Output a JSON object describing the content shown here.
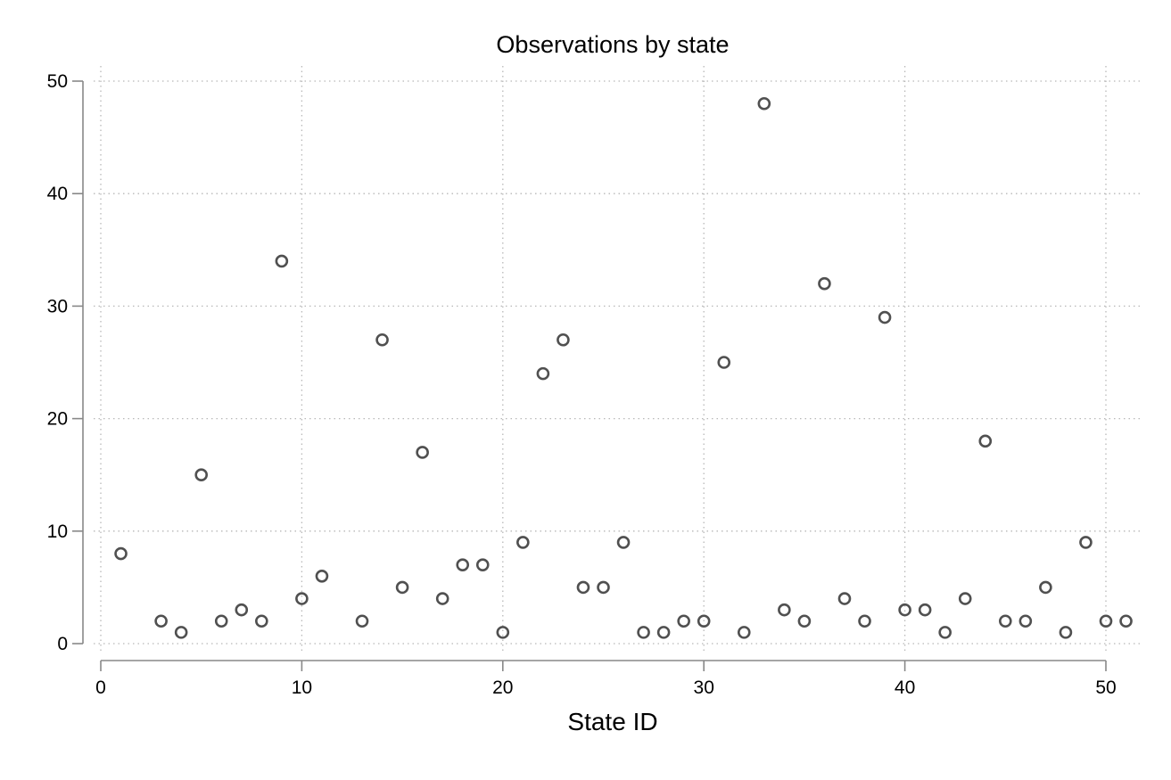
{
  "chart_data": {
    "type": "scatter",
    "title": "Observations by state",
    "xlabel": "State ID",
    "ylabel": "",
    "xlim": [
      0,
      51
    ],
    "ylim": [
      0,
      50
    ],
    "xticks": [
      0,
      10,
      20,
      30,
      40,
      50
    ],
    "yticks": [
      0,
      10,
      20,
      30,
      40,
      50
    ],
    "grid": true,
    "legend": "none",
    "marker": "hollow-circle",
    "marker_color": "#505050",
    "series": [
      {
        "x": [
          1,
          3,
          4,
          5,
          6,
          7,
          8,
          9,
          10,
          11,
          13,
          14,
          15,
          16,
          17,
          18,
          19,
          20,
          21,
          22,
          23,
          24,
          25,
          26,
          27,
          28,
          29,
          30,
          31,
          32,
          33,
          34,
          35,
          36,
          37,
          38,
          39,
          40,
          41,
          42,
          43,
          44,
          45,
          46,
          47,
          48,
          49,
          50,
          51
        ],
        "y": [
          8,
          2,
          1,
          15,
          2,
          3,
          2,
          34,
          4,
          6,
          2,
          27,
          5,
          17,
          4,
          7,
          7,
          1,
          9,
          24,
          27,
          5,
          5,
          9,
          1,
          1,
          2,
          2,
          25,
          1,
          48,
          3,
          2,
          32,
          4,
          2,
          29,
          3,
          3,
          1,
          4,
          18,
          2,
          2,
          5,
          1,
          9,
          2,
          2
        ]
      }
    ]
  }
}
